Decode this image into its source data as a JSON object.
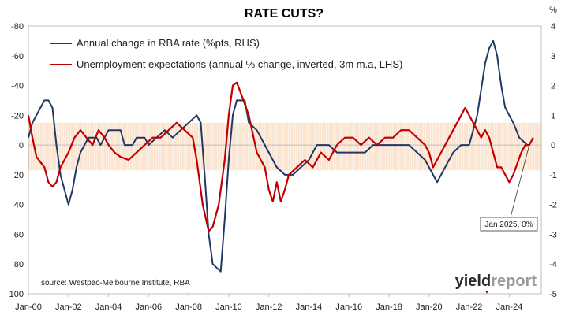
{
  "chart_data": {
    "type": "line",
    "title": "RATE CUTS?",
    "right_axis_unit": "%",
    "left_axis": {
      "ylim": [
        -80,
        100
      ],
      "inverted": true,
      "ticks": [
        "-80",
        "-60",
        "-40",
        "-20",
        "0",
        "20",
        "40",
        "60",
        "80",
        "100"
      ]
    },
    "right_axis": {
      "ylim": [
        -5,
        4
      ],
      "ticks": [
        "4",
        "3",
        "2",
        "1",
        "0",
        "-1",
        "-2",
        "-3",
        "-4",
        "-5"
      ]
    },
    "x_axis": {
      "xlim": [
        2000.0,
        2025.6
      ],
      "ticks": [
        "Jan-00",
        "Jan-02",
        "Jan-04",
        "Jan-06",
        "Jan-08",
        "Jan-10",
        "Jan-12",
        "Jan-14",
        "Jan-16",
        "Jan-18",
        "Jan-20",
        "Jan-22",
        "Jan-24"
      ]
    },
    "band": {
      "axis": "left",
      "from": -15,
      "to": 17,
      "color": "#f6c9a3"
    },
    "source": "source: Westpac-Melbourne Institute, RBA",
    "annotation": {
      "text": "Jan 2025, 0%",
      "x": 2025.0,
      "y_right": 0
    },
    "logo": {
      "text_a": "yield",
      "text_b": "report"
    },
    "colors": {
      "rate": "#1f3864",
      "unemployment": "#c00000"
    },
    "series": [
      {
        "name": "Annual change in RBA rate (%pts, RHS)",
        "axis": "right",
        "points": [
          [
            2000.0,
            0.25
          ],
          [
            2000.2,
            0.75
          ],
          [
            2000.4,
            1.0
          ],
          [
            2000.6,
            1.25
          ],
          [
            2000.8,
            1.5
          ],
          [
            2001.0,
            1.5
          ],
          [
            2001.2,
            1.25
          ],
          [
            2001.4,
            0.0
          ],
          [
            2001.6,
            -1.0
          ],
          [
            2001.8,
            -1.5
          ],
          [
            2002.0,
            -2.0
          ],
          [
            2002.2,
            -1.5
          ],
          [
            2002.4,
            -0.75
          ],
          [
            2002.6,
            -0.25
          ],
          [
            2002.8,
            0.0
          ],
          [
            2003.0,
            0.25
          ],
          [
            2003.4,
            0.25
          ],
          [
            2003.6,
            0.0
          ],
          [
            2003.8,
            0.25
          ],
          [
            2004.0,
            0.5
          ],
          [
            2004.6,
            0.5
          ],
          [
            2004.8,
            0.0
          ],
          [
            2005.2,
            0.0
          ],
          [
            2005.4,
            0.25
          ],
          [
            2005.8,
            0.25
          ],
          [
            2006.0,
            0.0
          ],
          [
            2006.4,
            0.25
          ],
          [
            2006.8,
            0.5
          ],
          [
            2007.2,
            0.25
          ],
          [
            2007.6,
            0.5
          ],
          [
            2008.0,
            0.75
          ],
          [
            2008.4,
            1.0
          ],
          [
            2008.6,
            0.75
          ],
          [
            2008.8,
            -1.0
          ],
          [
            2009.0,
            -3.0
          ],
          [
            2009.2,
            -4.0
          ],
          [
            2009.6,
            -4.25
          ],
          [
            2009.8,
            -2.5
          ],
          [
            2010.0,
            -0.5
          ],
          [
            2010.2,
            1.0
          ],
          [
            2010.4,
            1.5
          ],
          [
            2010.8,
            1.5
          ],
          [
            2011.0,
            0.75
          ],
          [
            2011.4,
            0.5
          ],
          [
            2011.8,
            0.0
          ],
          [
            2012.0,
            -0.25
          ],
          [
            2012.4,
            -0.75
          ],
          [
            2012.8,
            -1.0
          ],
          [
            2013.2,
            -1.0
          ],
          [
            2013.6,
            -0.75
          ],
          [
            2014.0,
            -0.5
          ],
          [
            2014.4,
            0.0
          ],
          [
            2015.0,
            0.0
          ],
          [
            2015.4,
            -0.25
          ],
          [
            2016.0,
            -0.25
          ],
          [
            2016.4,
            -0.25
          ],
          [
            2016.8,
            -0.25
          ],
          [
            2017.2,
            0.0
          ],
          [
            2017.6,
            0.0
          ],
          [
            2018.0,
            0.0
          ],
          [
            2018.6,
            0.0
          ],
          [
            2019.0,
            0.0
          ],
          [
            2019.4,
            -0.25
          ],
          [
            2019.8,
            -0.5
          ],
          [
            2020.2,
            -1.0
          ],
          [
            2020.4,
            -1.25
          ],
          [
            2020.8,
            -0.75
          ],
          [
            2021.2,
            -0.25
          ],
          [
            2021.6,
            0.0
          ],
          [
            2022.0,
            0.0
          ],
          [
            2022.4,
            1.0
          ],
          [
            2022.8,
            2.75
          ],
          [
            2023.0,
            3.25
          ],
          [
            2023.2,
            3.5
          ],
          [
            2023.4,
            3.0
          ],
          [
            2023.6,
            2.0
          ],
          [
            2023.8,
            1.25
          ],
          [
            2024.2,
            0.75
          ],
          [
            2024.5,
            0.25
          ],
          [
            2024.9,
            0.0
          ],
          [
            2025.0,
            0.0
          ]
        ]
      },
      {
        "name": "Unemployment expectations (annual % change, inverted, 3m m.a, LHS)",
        "axis": "left",
        "points": [
          [
            2000.0,
            -20
          ],
          [
            2000.2,
            -5
          ],
          [
            2000.4,
            8
          ],
          [
            2000.8,
            15
          ],
          [
            2001.0,
            25
          ],
          [
            2001.2,
            28
          ],
          [
            2001.4,
            25
          ],
          [
            2001.6,
            15
          ],
          [
            2001.8,
            10
          ],
          [
            2002.0,
            5
          ],
          [
            2002.3,
            -5
          ],
          [
            2002.6,
            -10
          ],
          [
            2002.9,
            -5
          ],
          [
            2003.2,
            0
          ],
          [
            2003.5,
            -10
          ],
          [
            2003.8,
            -5
          ],
          [
            2004.0,
            0
          ],
          [
            2004.3,
            5
          ],
          [
            2004.6,
            8
          ],
          [
            2005.0,
            10
          ],
          [
            2005.4,
            5
          ],
          [
            2005.8,
            0
          ],
          [
            2006.2,
            -5
          ],
          [
            2006.6,
            -5
          ],
          [
            2007.0,
            -10
          ],
          [
            2007.4,
            -15
          ],
          [
            2007.8,
            -10
          ],
          [
            2008.2,
            -5
          ],
          [
            2008.4,
            10
          ],
          [
            2008.7,
            40
          ],
          [
            2009.0,
            58
          ],
          [
            2009.2,
            55
          ],
          [
            2009.5,
            40
          ],
          [
            2009.8,
            10
          ],
          [
            2010.0,
            -20
          ],
          [
            2010.2,
            -40
          ],
          [
            2010.4,
            -42
          ],
          [
            2010.6,
            -35
          ],
          [
            2011.0,
            -20
          ],
          [
            2011.4,
            5
          ],
          [
            2011.8,
            15
          ],
          [
            2012.0,
            30
          ],
          [
            2012.2,
            38
          ],
          [
            2012.4,
            25
          ],
          [
            2012.6,
            38
          ],
          [
            2012.8,
            30
          ],
          [
            2013.0,
            20
          ],
          [
            2013.4,
            15
          ],
          [
            2013.8,
            10
          ],
          [
            2014.2,
            15
          ],
          [
            2014.6,
            5
          ],
          [
            2015.0,
            10
          ],
          [
            2015.4,
            0
          ],
          [
            2015.8,
            -5
          ],
          [
            2016.2,
            -5
          ],
          [
            2016.6,
            0
          ],
          [
            2017.0,
            -5
          ],
          [
            2017.4,
            0
          ],
          [
            2017.8,
            -5
          ],
          [
            2018.2,
            -5
          ],
          [
            2018.6,
            -10
          ],
          [
            2019.0,
            -10
          ],
          [
            2019.4,
            -5
          ],
          [
            2019.8,
            0
          ],
          [
            2020.0,
            5
          ],
          [
            2020.2,
            15
          ],
          [
            2020.6,
            5
          ],
          [
            2021.0,
            -5
          ],
          [
            2021.4,
            -15
          ],
          [
            2021.8,
            -25
          ],
          [
            2022.2,
            -15
          ],
          [
            2022.6,
            -5
          ],
          [
            2022.8,
            -10
          ],
          [
            2023.0,
            -5
          ],
          [
            2023.2,
            5
          ],
          [
            2023.4,
            15
          ],
          [
            2023.6,
            15
          ],
          [
            2023.8,
            20
          ],
          [
            2024.0,
            25
          ],
          [
            2024.2,
            20
          ],
          [
            2024.6,
            5
          ],
          [
            2024.8,
            0
          ],
          [
            2025.0,
            0
          ],
          [
            2025.2,
            -5
          ]
        ]
      }
    ]
  }
}
